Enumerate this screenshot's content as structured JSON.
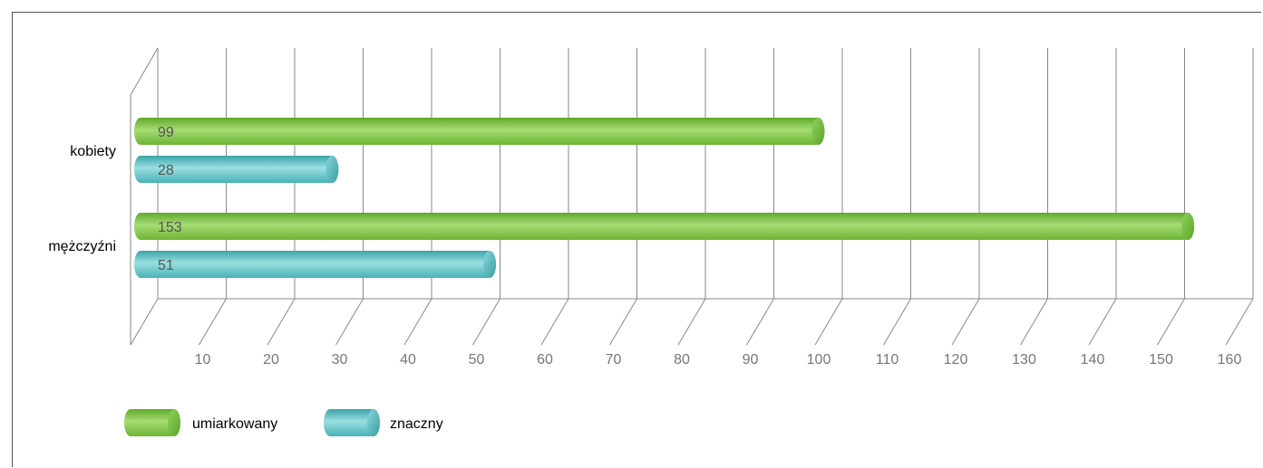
{
  "chart_data": {
    "type": "bar",
    "orientation": "horizontal",
    "style": "3d-cylinder",
    "categories": [
      "kobiety",
      "mężczyźni"
    ],
    "series": [
      {
        "name": "umiarkowany",
        "values": [
          99,
          153
        ],
        "color": "#7dc242"
      },
      {
        "name": "znaczny",
        "values": [
          28,
          51
        ],
        "color": "#5bbcc0"
      }
    ],
    "xlim": [
      0,
      160
    ],
    "x_ticks": [
      10,
      20,
      30,
      40,
      50,
      60,
      70,
      80,
      90,
      100,
      110,
      120,
      130,
      140,
      150,
      160
    ],
    "title": "",
    "xlabel": "",
    "ylabel": "",
    "grid": true,
    "legend_position": "bottom-left"
  }
}
